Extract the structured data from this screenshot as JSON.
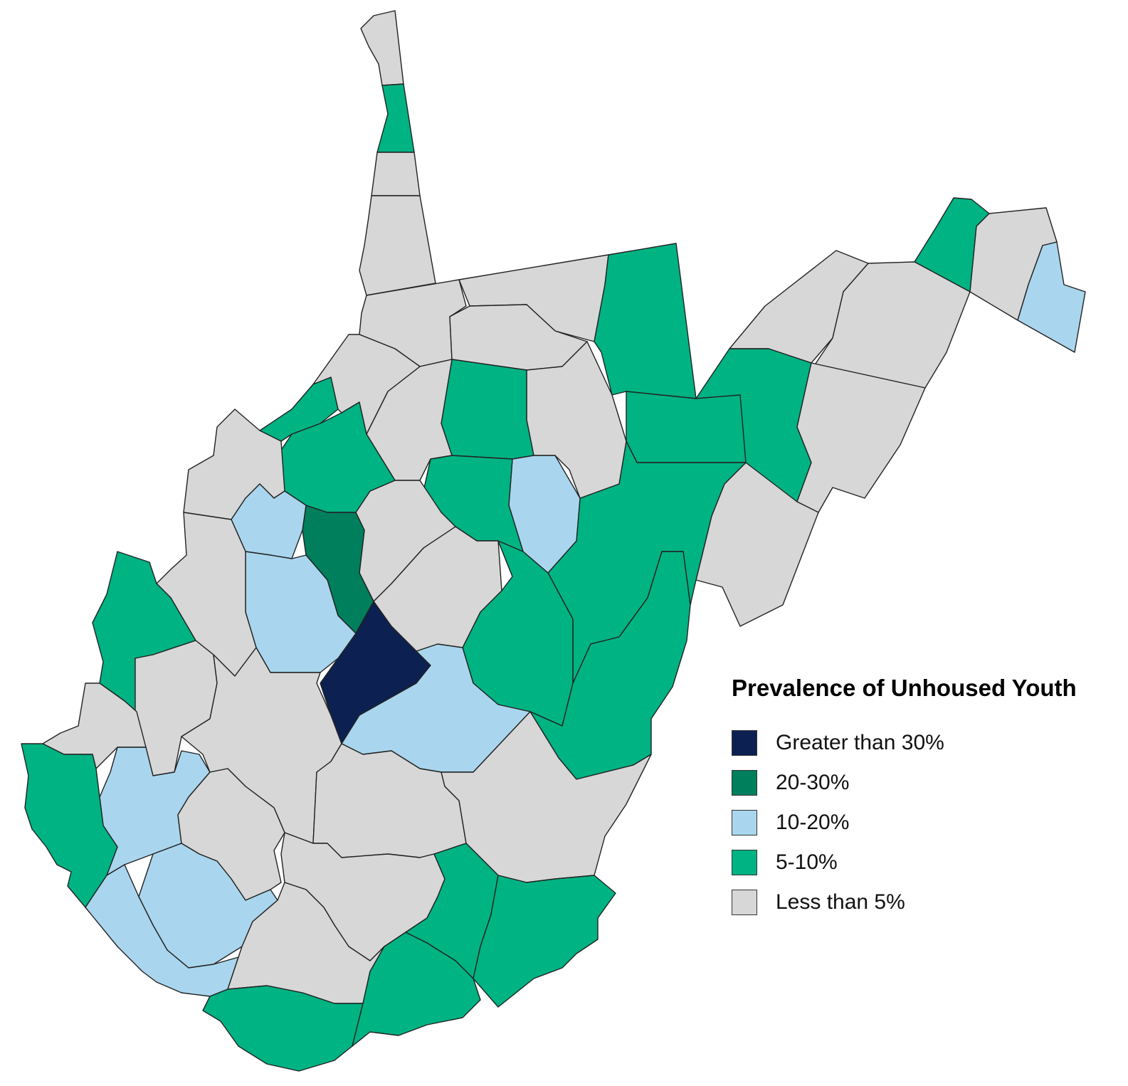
{
  "legend": {
    "title": "Prevalence of Unhoused Youth",
    "items": [
      {
        "label": "Greater than 30%",
        "color": "#0c2151"
      },
      {
        "label": "20-30%",
        "color": "#007f5d"
      },
      {
        "label": "10-20%",
        "color": "#a9d6ee"
      },
      {
        "label": "5-10%",
        "color": "#00b383"
      },
      {
        "label": "Less than 5%",
        "color": "#d7d7d7"
      }
    ]
  },
  "colors": {
    "gt30": "#0c2151",
    "p20_30": "#007f5d",
    "p10_20": "#a9d6ee",
    "p5_10": "#00b383",
    "lt5": "#d7d7d7"
  }
}
